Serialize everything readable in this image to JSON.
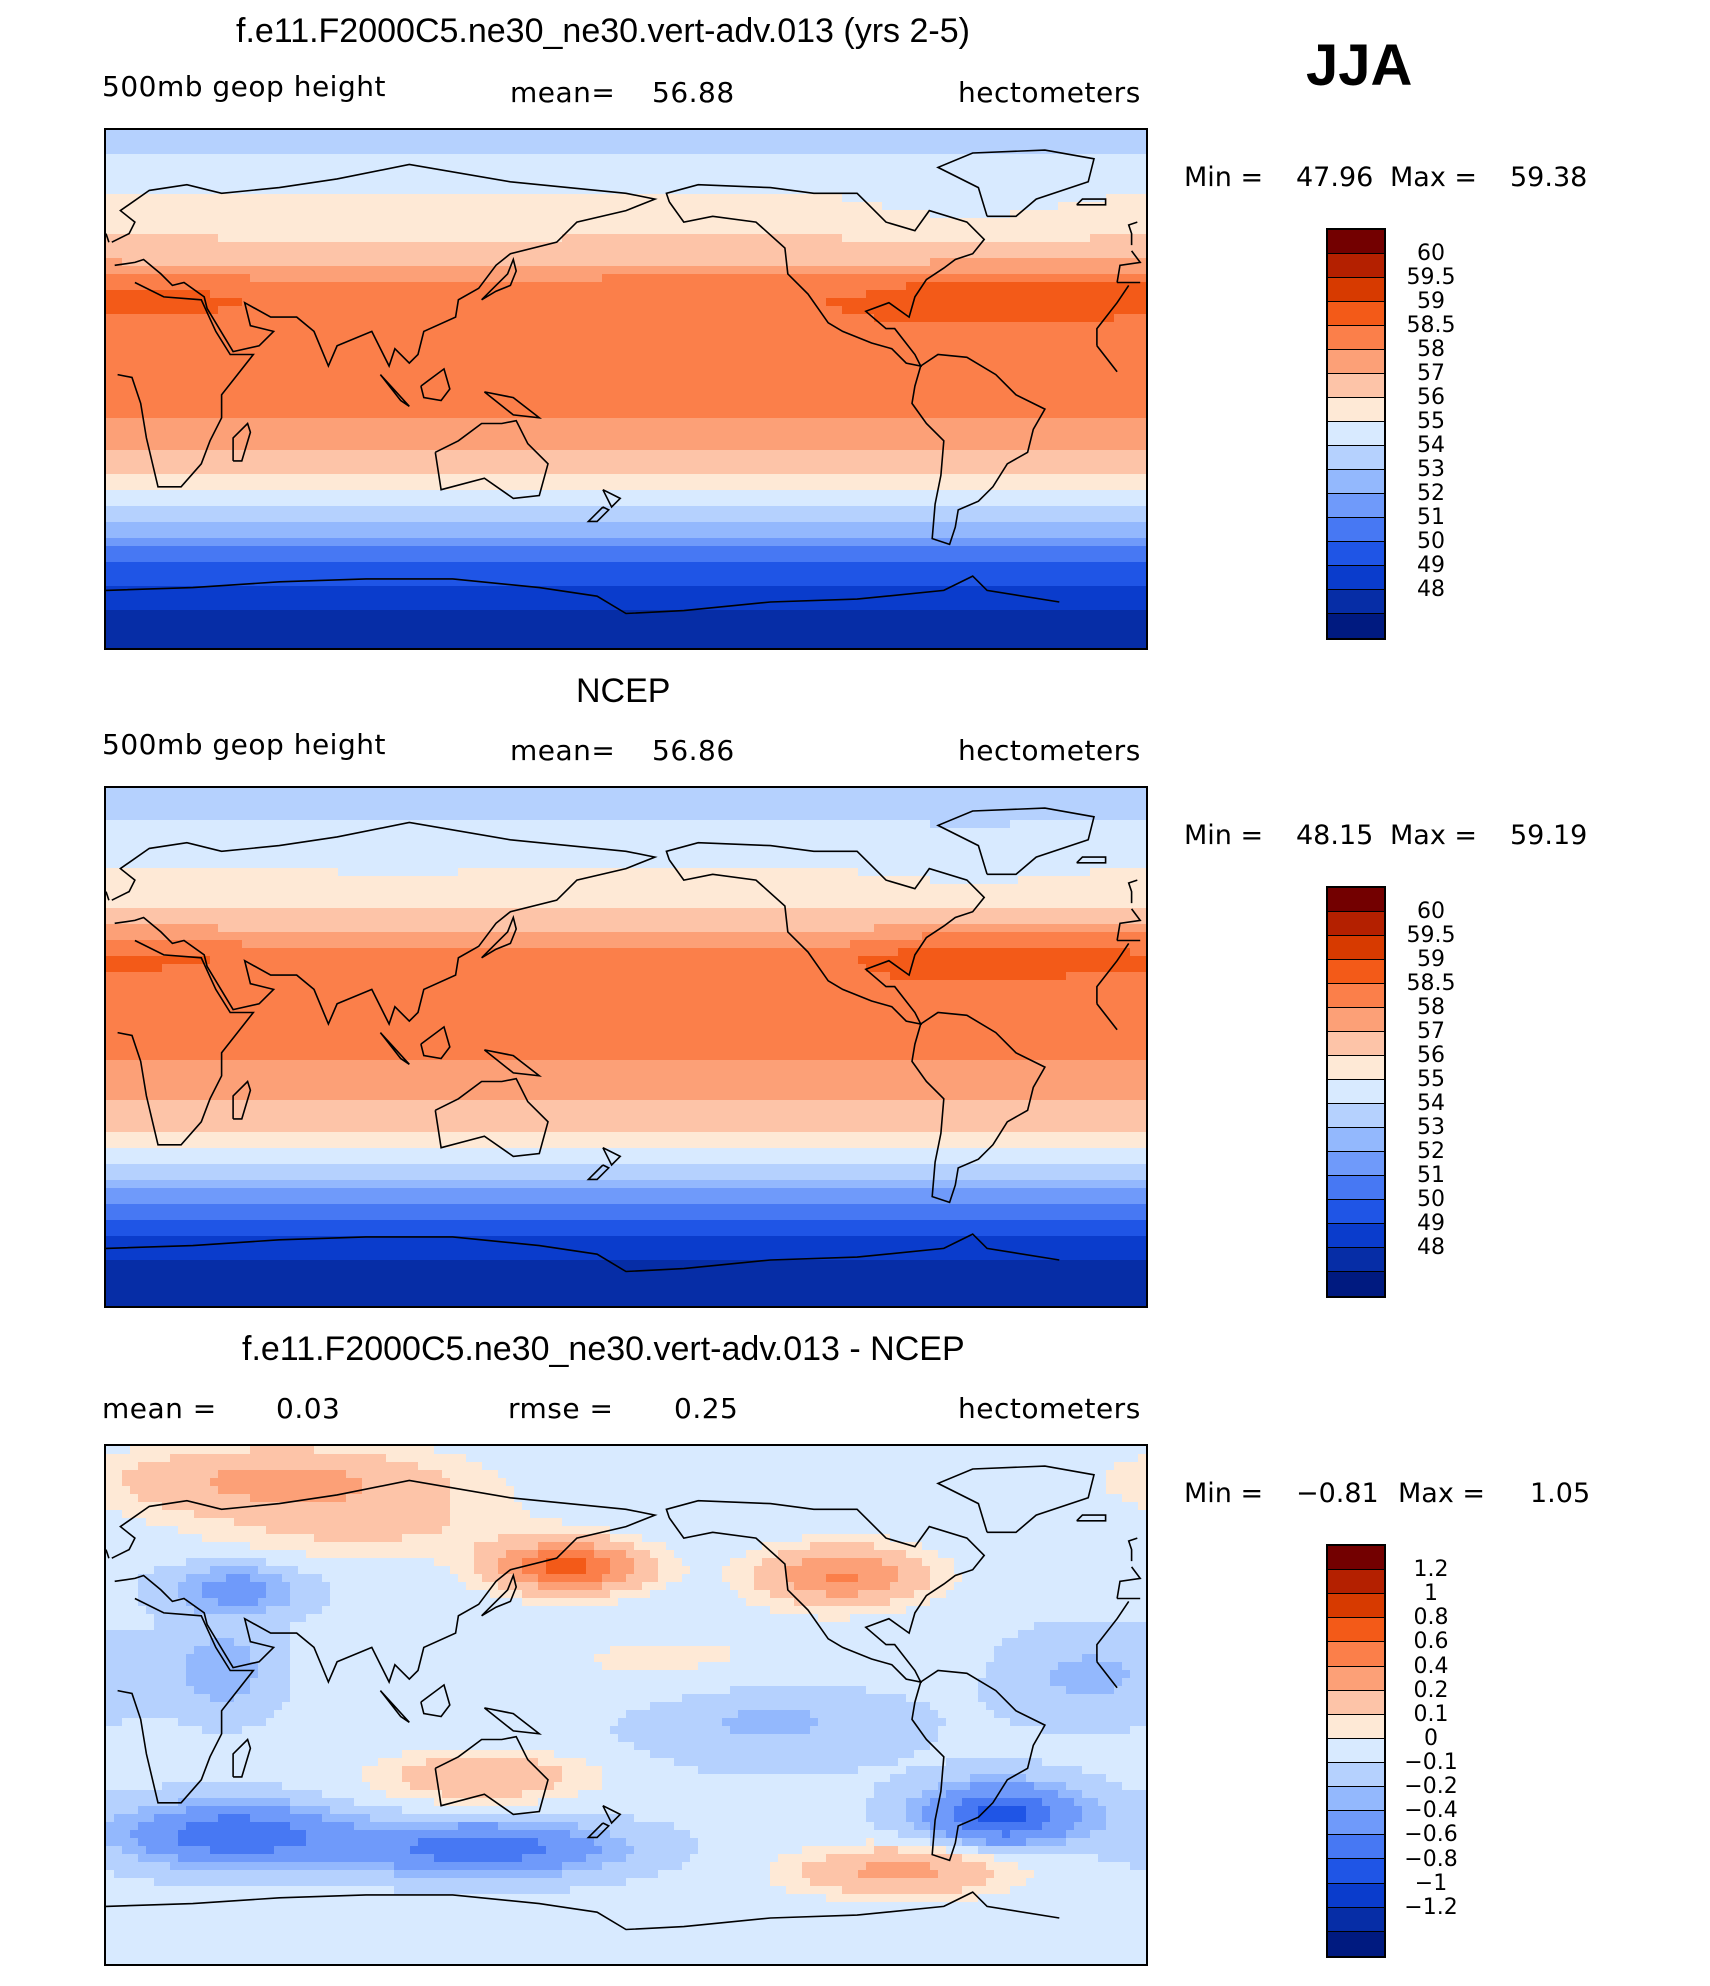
{
  "season": "JJA",
  "colors": {
    "abs_scale": [
      "#730000",
      "#b42000",
      "#d73a00",
      "#f35a18",
      "#fb7f4a",
      "#fca077",
      "#fdc4a8",
      "#fee9d6",
      "#d8eaff",
      "#b5d1fe",
      "#93b8fd",
      "#6f9afa",
      "#4778f3",
      "#1f55e6",
      "#0a3ccc",
      "#062da6",
      "#001a80"
    ],
    "diff_scale": [
      "#730000",
      "#b42000",
      "#d73a00",
      "#f35a18",
      "#fb7f4a",
      "#fca077",
      "#fdc4a8",
      "#fee9d6",
      "#d8eaff",
      "#b5d1fe",
      "#93b8fd",
      "#6f9afa",
      "#4778f3",
      "#1f55e6",
      "#0a3ccc",
      "#062da6",
      "#001a80"
    ]
  },
  "chart_data": [
    {
      "type": "heatmap",
      "title": "f.e11.F2000C5.ne30_ne30.vert-adv.013 (yrs 2-5)",
      "left_label": "500mb  geop  height",
      "mean_label": "mean=",
      "mean_value": "56.88",
      "units": "hectometers",
      "min_label": "Min  =",
      "min_value": "47.96",
      "max_label": "Max  =",
      "max_value": "59.38",
      "colorbar_ticks": [
        "60",
        "59.5",
        "59",
        "58.5",
        "58",
        "57",
        "56",
        "55",
        "54",
        "53",
        "52",
        "51",
        "50",
        "49",
        "48"
      ],
      "zonal_profile": {
        "lat": [
          90,
          80,
          70,
          60,
          50,
          40,
          30,
          20,
          10,
          0,
          -10,
          -20,
          -30,
          -40,
          -50,
          -60,
          -70,
          -80,
          -90
        ],
        "value": [
          54.4,
          55.2,
          55.9,
          56.5,
          57.2,
          58.3,
          58.9,
          58.8,
          58.7,
          58.6,
          58.5,
          58.0,
          57.0,
          55.2,
          53.2,
          51.0,
          49.6,
          48.6,
          48.2
        ]
      }
    },
    {
      "type": "heatmap",
      "title": "NCEP",
      "left_label": "500mb  geop  height",
      "mean_label": "mean=",
      "mean_value": "56.86",
      "units": "hectometers",
      "min_label": "Min  =",
      "min_value": "48.15",
      "max_label": "Max  =",
      "max_value": "59.19",
      "colorbar_ticks": [
        "60",
        "59.5",
        "59",
        "58.5",
        "58",
        "57",
        "56",
        "55",
        "54",
        "53",
        "52",
        "51",
        "50",
        "49",
        "48"
      ],
      "zonal_profile": {
        "lat": [
          90,
          80,
          70,
          60,
          50,
          40,
          30,
          20,
          10,
          0,
          -10,
          -20,
          -30,
          -40,
          -50,
          -60,
          -70,
          -80,
          -90
        ],
        "value": [
          54.3,
          55.0,
          55.6,
          56.2,
          56.9,
          58.0,
          58.8,
          58.8,
          58.7,
          58.6,
          58.4,
          57.9,
          56.9,
          55.1,
          53.0,
          50.9,
          49.4,
          48.5,
          48.3
        ]
      }
    },
    {
      "type": "heatmap",
      "title": "f.e11.F2000C5.ne30_ne30.vert-adv.013 - NCEP",
      "left_label": "mean =",
      "mean_value": "0.03",
      "mid_label": "rmse =",
      "rmse_value": "0.25",
      "units": "hectometers",
      "min_label": "Min  =",
      "min_value": "−0.81",
      "max_label": "Max  =",
      "max_value": "1.05",
      "colorbar_ticks": [
        "1.2",
        "1",
        "0.8",
        "0.6",
        "0.4",
        "0.2",
        "0.1",
        "0",
        "−0.1",
        "−0.2",
        "−0.4",
        "−0.6",
        "−0.8",
        "−1",
        "−1.2"
      ]
    }
  ]
}
